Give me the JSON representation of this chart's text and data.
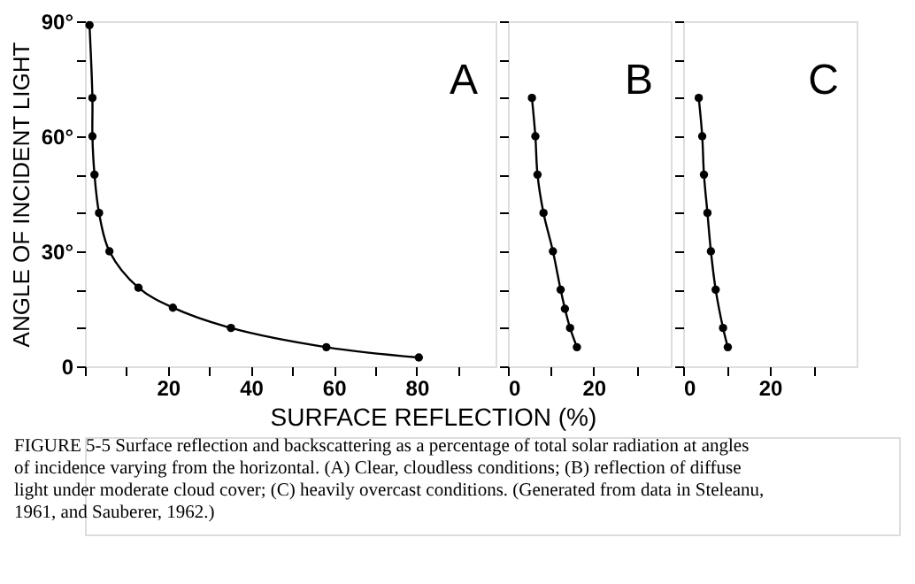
{
  "chart_data": [
    {
      "type": "line",
      "title": "A",
      "ylabel": "ANGLE OF INCIDENT LIGHT",
      "marker": "circle",
      "line_style": "solid",
      "grid": false,
      "x": [
        1.1,
        1.8,
        1.8,
        2.3,
        3.4,
        5.9,
        12.9,
        21.2,
        35.2,
        58.2,
        80.5
      ],
      "series": [
        {
          "color": "#000000",
          "values": [
            89,
            70,
            60,
            50,
            40,
            30,
            20.5,
            15.3,
            10,
            5,
            2.3
          ]
        }
      ],
      "xlim": [
        0,
        99
      ],
      "xticks": [
        {
          "value": 0,
          "label": null
        },
        {
          "value": 10,
          "label": null
        },
        20,
        {
          "value": 30,
          "label": null
        },
        40,
        {
          "value": 50,
          "label": null
        },
        60,
        {
          "value": 70,
          "label": null
        },
        80,
        {
          "value": 90,
          "label": null
        }
      ],
      "ylim": [
        0,
        90
      ],
      "yticks": [
        0,
        {
          "value": 10,
          "label": null
        },
        {
          "value": 20,
          "label": null
        },
        {
          "value": 30,
          "label": "30°"
        },
        {
          "value": 40,
          "label": null
        },
        {
          "value": 50,
          "label": null
        },
        {
          "value": 60,
          "label": "60°"
        },
        {
          "value": 70,
          "label": null
        },
        {
          "value": 80,
          "label": null
        },
        {
          "value": 90,
          "label": "90°"
        }
      ],
      "annotations": [
        "FIGURE 5-5 Surface reflection and backscattering as a percentage of total solar radiation at angles of incidence varying from the horizontal. (A) Clear, cloudless conditions; (B) reflection of diffuse light under moderate cloud cover; (C) heavily overcast conditions. (Generated from data in Steleanu, 1961, and Sauberer, 1962.)"
      ]
    },
    {
      "type": "line",
      "title": "B",
      "xlabel": "SURFACE REFLECTION (%)",
      "marker": "circle",
      "line_style": "solid",
      "grid": false,
      "tick_labels": "x",
      "x": [
        5.6,
        6.4,
        6.9,
        8.3,
        10.5,
        12.3,
        13.3,
        14.5,
        16.1
      ],
      "series": [
        {
          "color": "#000000",
          "values": [
            70,
            60,
            50,
            40,
            30,
            20,
            15,
            10,
            5
          ]
        }
      ],
      "xlim": [
        0,
        38
      ],
      "xticks": [
        0,
        {
          "value": 10,
          "label": null
        },
        20,
        {
          "value": 30,
          "label": null
        }
      ],
      "ylim": [
        0,
        90
      ],
      "yticks": [
        0,
        10,
        20,
        30,
        40,
        50,
        60,
        70,
        80,
        90
      ]
    },
    {
      "type": "line",
      "title": "C",
      "marker": "circle",
      "line_style": "solid",
      "grid": false,
      "tick_labels": "x",
      "x": [
        3.6,
        4.4,
        4.8,
        5.6,
        6.4,
        7.5,
        9.2,
        10.3
      ],
      "series": [
        {
          "color": "#000000",
          "values": [
            70,
            60,
            50,
            40,
            30,
            20,
            10,
            5
          ]
        }
      ],
      "xlim": [
        0,
        40
      ],
      "xticks": [
        0,
        {
          "value": 10,
          "label": null
        },
        20,
        {
          "value": 30,
          "label": null
        }
      ],
      "ylim": [
        0,
        90
      ],
      "yticks": [
        0,
        10,
        20,
        30,
        40,
        50,
        60,
        70,
        80,
        90
      ]
    }
  ]
}
